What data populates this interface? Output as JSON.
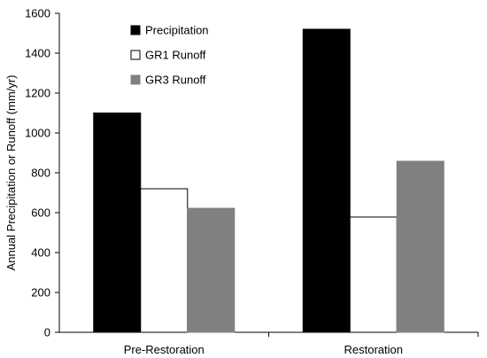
{
  "chart_data": {
    "type": "bar",
    "categories": [
      "Pre-Restoration",
      "Restoration"
    ],
    "series": [
      {
        "name": "Precipitation",
        "values": [
          1100,
          1520
        ],
        "color": "#000000"
      },
      {
        "name": "GR1 Runoff",
        "values": [
          720,
          578
        ],
        "color": "#ffffff"
      },
      {
        "name": "GR3 Runoff",
        "values": [
          622,
          858
        ],
        "color": "#808080"
      }
    ],
    "title": "",
    "xlabel": "",
    "ylabel": "Annual Precipitation or Runoff (mm/yr)",
    "ylim": [
      0,
      1600
    ],
    "yticks": [
      "0",
      "200",
      "400",
      "600",
      "800",
      "1000",
      "1200",
      "1400",
      "1600"
    ],
    "grid": false,
    "legend": "top-left inside plot"
  }
}
